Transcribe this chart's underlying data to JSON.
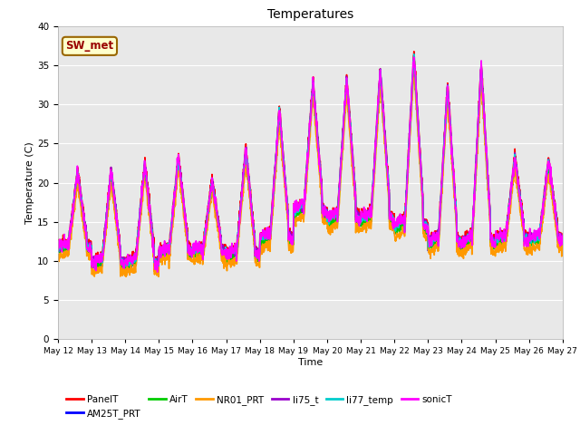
{
  "title": "Temperatures",
  "xlabel": "Time",
  "ylabel": "Temperature (C)",
  "annotation": "SW_met",
  "ylim": [
    0,
    40
  ],
  "yticks": [
    0,
    5,
    10,
    15,
    20,
    25,
    30,
    35,
    40
  ],
  "x_tick_labels": [
    "May 12",
    "May 13",
    "May 14",
    "May 15",
    "May 16",
    "May 17",
    "May 18",
    "May 19",
    "May 20",
    "May 21",
    "May 22",
    "May 23",
    "May 24",
    "May 25",
    "May 26",
    "May 27"
  ],
  "series": {
    "PanelT": {
      "color": "#ff0000",
      "lw": 1.2
    },
    "AM25T_PRT": {
      "color": "#0000ff",
      "lw": 1.2
    },
    "AirT": {
      "color": "#00cc00",
      "lw": 1.2
    },
    "NR01_PRT": {
      "color": "#ff9900",
      "lw": 1.2
    },
    "li75_t": {
      "color": "#9900cc",
      "lw": 1.2
    },
    "li77_temp": {
      "color": "#00cccc",
      "lw": 1.2
    },
    "sonicT": {
      "color": "#ff00ff",
      "lw": 1.2
    }
  },
  "bg_color": "#e8e8e8",
  "fig_bg": "#ffffff",
  "grid_color": "#ffffff",
  "n_days": 15,
  "pts_per_day": 144,
  "day_peaks": [
    21.0,
    21.3,
    22.2,
    23.0,
    20.0,
    24.0,
    29.0,
    32.5,
    33.0,
    34.0,
    36.0,
    32.0,
    34.5,
    23.0,
    22.5
  ],
  "day_mins": [
    11.5,
    9.5,
    9.5,
    11.0,
    11.0,
    10.5,
    12.5,
    16.0,
    15.0,
    15.0,
    14.0,
    12.0,
    12.0,
    12.5,
    12.5
  ]
}
